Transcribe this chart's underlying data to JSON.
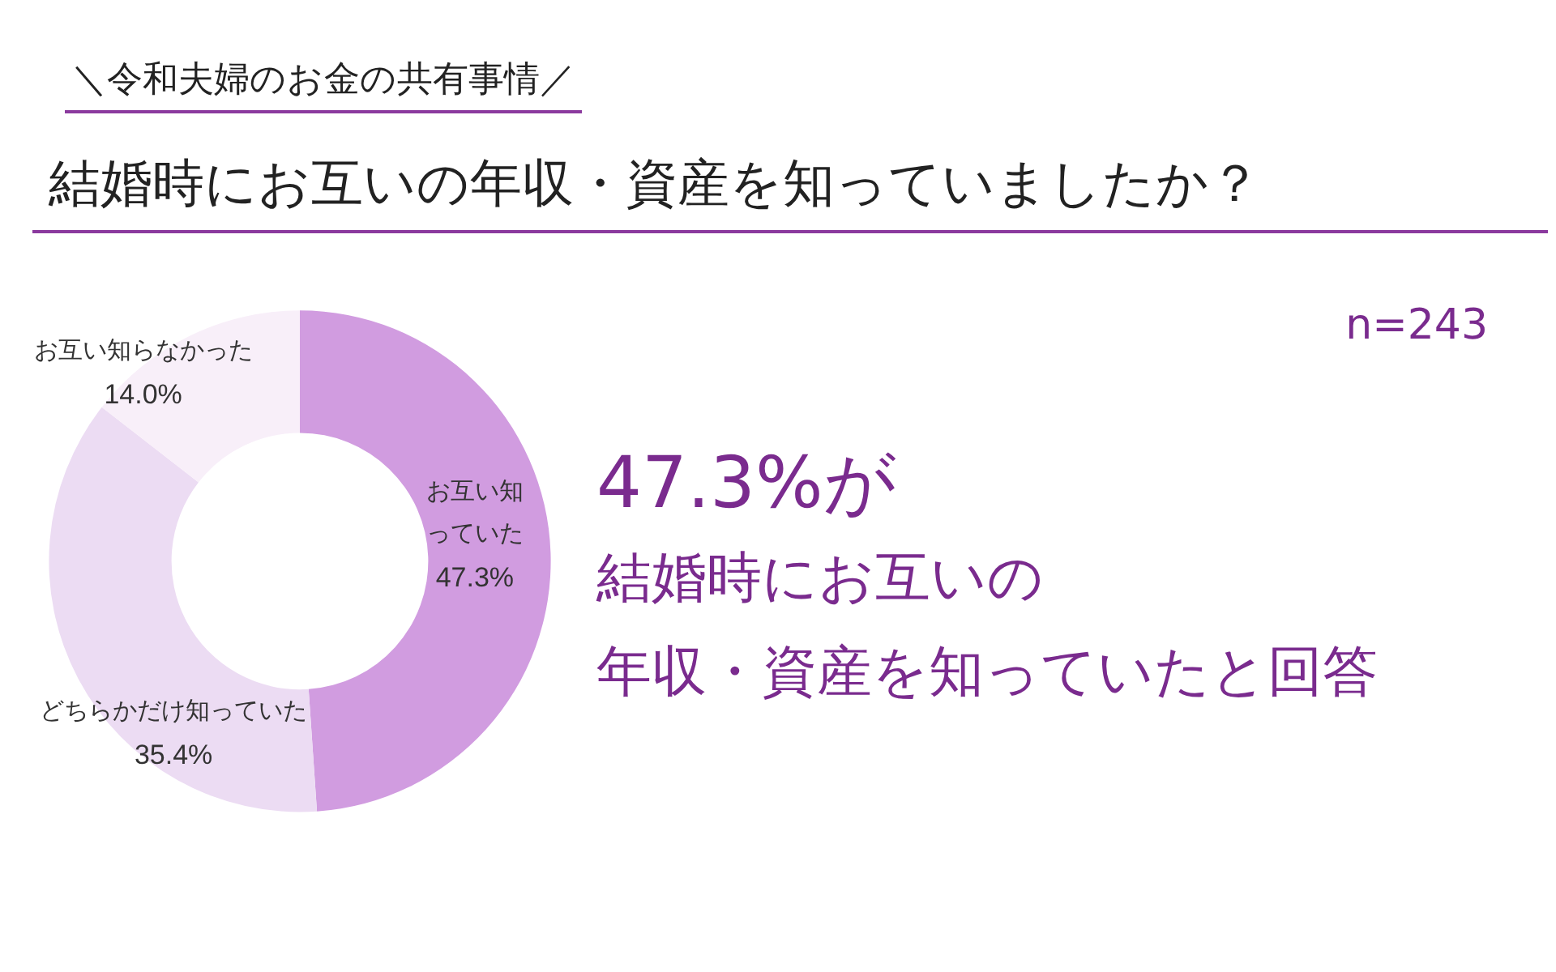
{
  "chart_data": {
    "type": "donut",
    "subtitle": "＼令和夫婦のお金の共有事情／",
    "title": "結婚時にお互いの年収・資産を知っていましたか？",
    "categories": [
      "お互い知っていた",
      "どちらかだけ知っていた",
      "お互い知らなかった"
    ],
    "values": [
      47.3,
      35.4,
      14.0
    ],
    "value_labels": [
      "47.3%",
      "35.4%",
      "14.0%"
    ],
    "colors": [
      "#d19ce0",
      "#ecdcf3",
      "#f8eff9"
    ],
    "annotations": [
      "n=243",
      "47.3%が",
      "結婚時にお互いの",
      "年収・資産を知っていたと回答"
    ]
  }
}
